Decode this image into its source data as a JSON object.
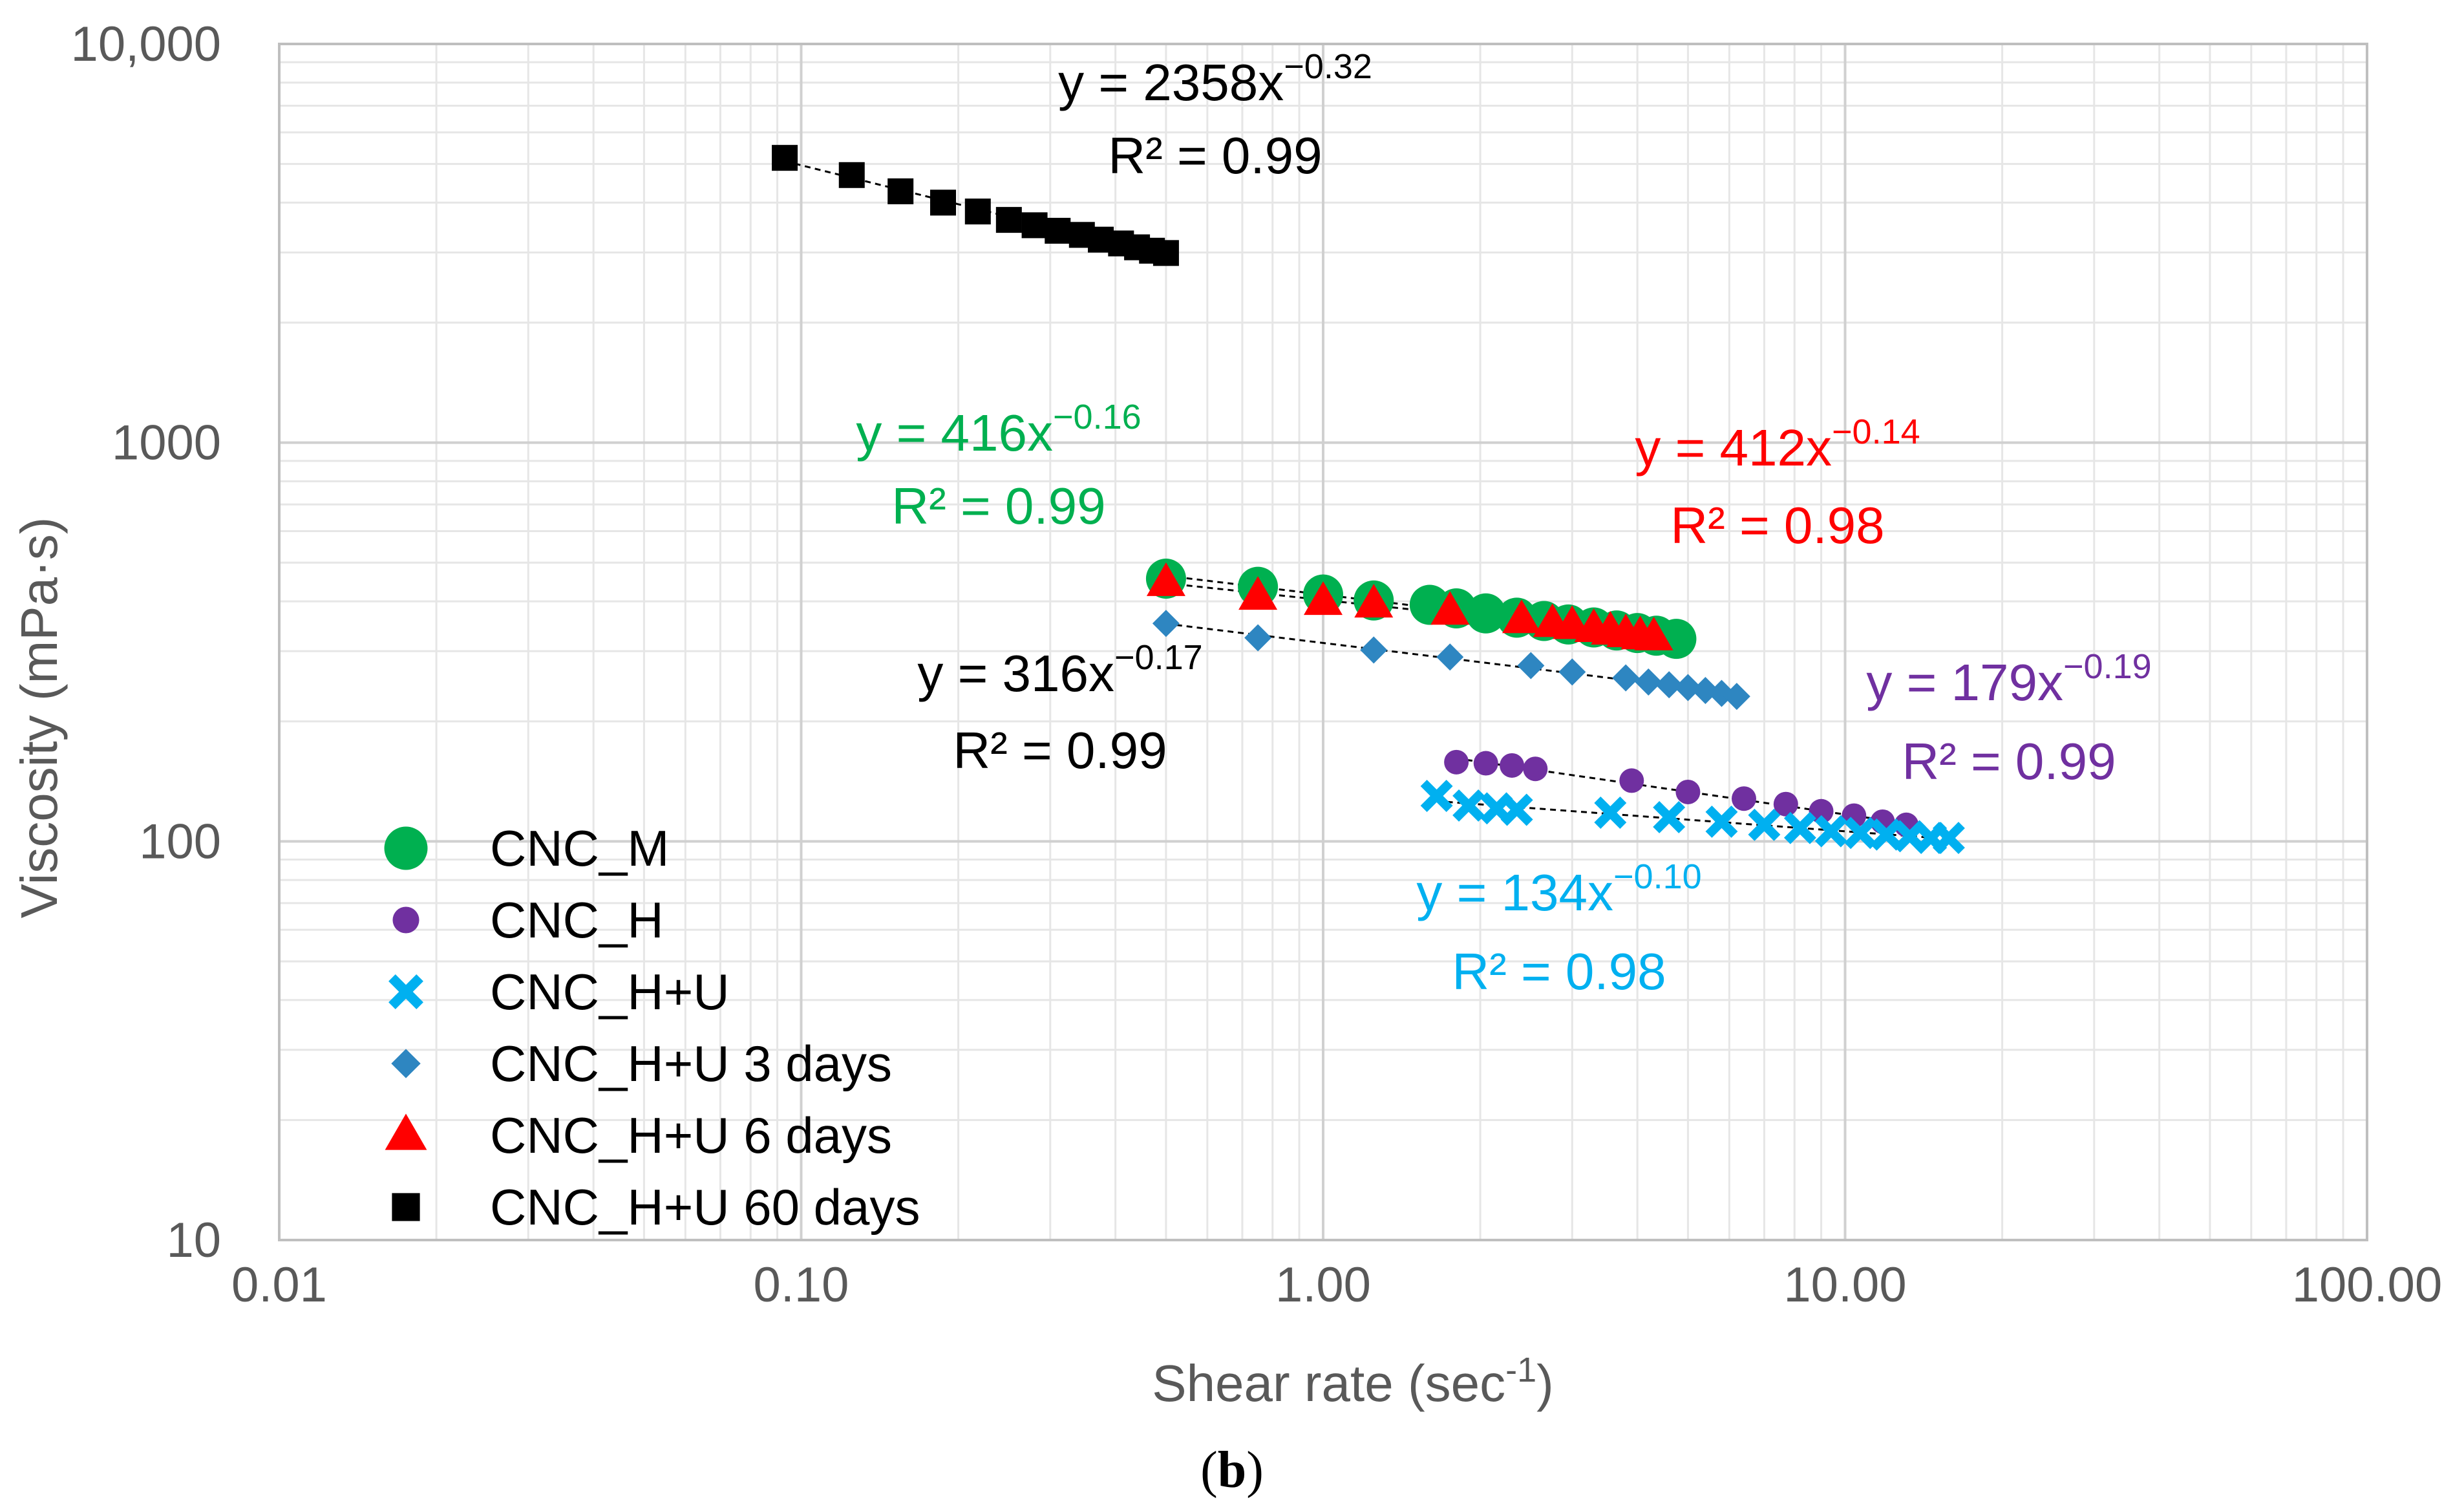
{
  "chart_data": {
    "type": "scatter",
    "x_scale": "log",
    "y_scale": "log",
    "xlabel": "Shear rate (sec",
    "xlabel_exp": "-1",
    "xlabel_close": ")",
    "ylabel": "Viscosity (mPa·s)",
    "xlim": [
      0.01,
      100
    ],
    "ylim": [
      10,
      10000
    ],
    "x_ticks": [
      0.01,
      0.1,
      1,
      10,
      100
    ],
    "x_tick_labels": [
      "0.01",
      "0.10",
      "1.00",
      "10.00",
      "100.00"
    ],
    "y_ticks": [
      10,
      100,
      1000,
      10000
    ],
    "y_tick_labels": [
      "10",
      "100",
      "1000",
      "10,000"
    ],
    "grid": "major and minor",
    "legend_position": "bottom-left",
    "caption": {
      "open": "(",
      "letter": "b",
      "close": ")"
    },
    "series": [
      {
        "name": "CNC_M",
        "marker": "circle",
        "color": "#00B050",
        "x": [
          0.5,
          0.75,
          1.0,
          1.25,
          1.6,
          1.8,
          2.05,
          2.35,
          2.65,
          2.95,
          3.3,
          3.65,
          4.0,
          4.35,
          4.75
        ],
        "y": [
          456,
          435,
          416,
          402,
          392,
          384,
          373,
          364,
          357,
          350,
          344,
          338,
          333,
          328,
          322
        ],
        "fit": {
          "equation": "y = 416x",
          "exponent": "−0.16",
          "r2": "R² = 0.99",
          "color": "#00B050"
        }
      },
      {
        "name": "CNC_H",
        "marker": "dot",
        "color": "#7030A0",
        "x": [
          1.8,
          2.05,
          2.3,
          2.55,
          3.9,
          5.0,
          6.4,
          7.7,
          9.0,
          10.4,
          11.8,
          13.1
        ],
        "y": [
          158,
          157,
          155,
          152,
          142,
          133,
          128,
          124,
          119,
          116,
          112,
          110
        ],
        "fit": {
          "equation": "y = 179x",
          "exponent": "−0.19",
          "r2": "R² = 0.99",
          "color": "#7030A0"
        }
      },
      {
        "name": "CNC_H+U",
        "marker": "x",
        "color": "#00B0F0",
        "x": [
          1.65,
          1.9,
          2.15,
          2.35,
          3.55,
          4.6,
          5.8,
          7.0,
          8.2,
          9.4,
          10.7,
          12.0,
          13.3,
          14.6,
          15.8
        ],
        "y": [
          130,
          123,
          121,
          120,
          118,
          115,
          112,
          110,
          108,
          106,
          105,
          104,
          103,
          102,
          102
        ],
        "fit": {
          "equation": "y = 134x",
          "exponent": "−0.10",
          "r2": "R² = 0.98",
          "color": "#00B0F0"
        }
      },
      {
        "name": "CNC_H+U 3 days",
        "marker": "diamond",
        "color": "#2E86C1",
        "x": [
          0.5,
          0.75,
          1.25,
          1.75,
          2.5,
          3.0,
          3.8,
          4.2,
          4.6,
          5.0,
          5.4,
          5.8,
          6.2
        ],
        "y": [
          352,
          324,
          302,
          290,
          276,
          266,
          257,
          251,
          247,
          243,
          239,
          235,
          231
        ],
        "fit": {
          "equation": "y = 316x",
          "exponent": "−0.17",
          "r2": "R² = 0.99",
          "color": "#000000"
        }
      },
      {
        "name": "CNC_H+U 6 days",
        "marker": "triangle",
        "color": "#FF0000",
        "x": [
          0.5,
          0.75,
          1.0,
          1.25,
          1.75,
          2.4,
          2.75,
          3.0,
          3.3,
          3.55,
          3.8,
          4.05,
          4.3
        ],
        "y": [
          446,
          412,
          400,
          394,
          378,
          360,
          352,
          348,
          342,
          337,
          332,
          328,
          326
        ],
        "fit": {
          "equation": "y = 412x",
          "exponent": "−0.14",
          "r2": "R² = 0.98",
          "color": "#FF0000"
        }
      },
      {
        "name": "CNC_H+U 60 days",
        "marker": "square",
        "color": "#000000",
        "x": [
          0.093,
          0.125,
          0.155,
          0.187,
          0.218,
          0.25,
          0.28,
          0.31,
          0.345,
          0.375,
          0.41,
          0.44,
          0.47,
          0.5
        ],
        "y": [
          5180,
          4690,
          4270,
          4000,
          3800,
          3620,
          3510,
          3400,
          3320,
          3230,
          3160,
          3090,
          3030,
          2990
        ],
        "fit": {
          "equation": "y = 2358x",
          "exponent": "−0.32",
          "r2": "R² = 0.99",
          "color": "#000000"
        }
      }
    ]
  }
}
